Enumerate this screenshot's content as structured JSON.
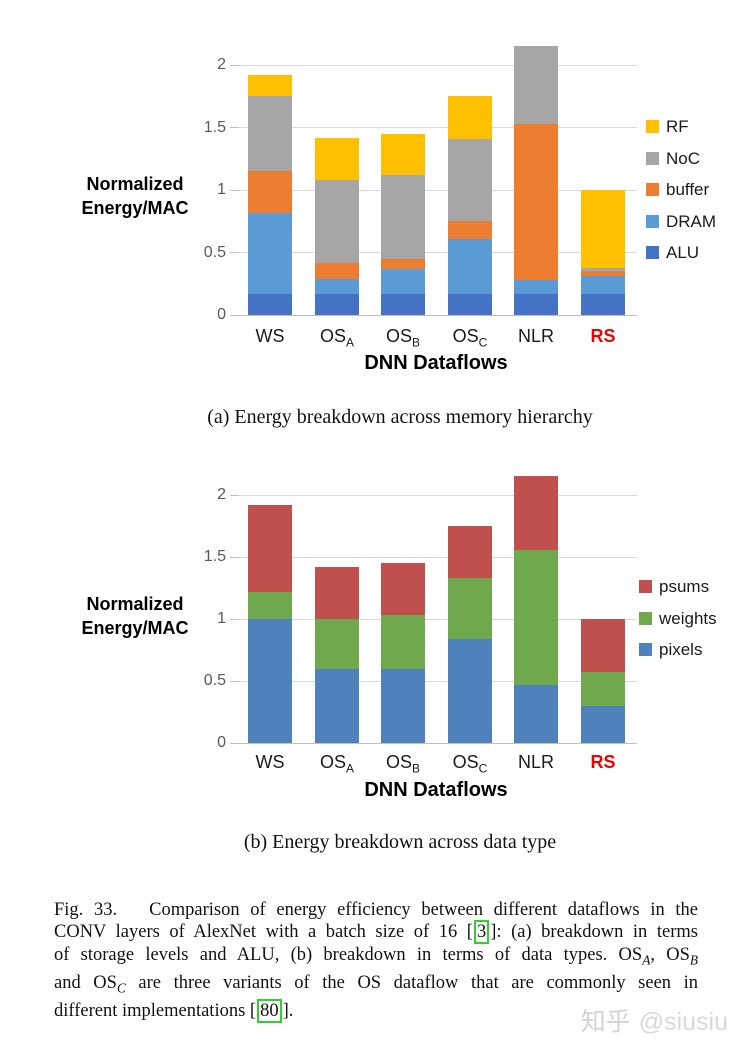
{
  "chart_data": [
    {
      "id": "a",
      "type": "bar",
      "stacked": true,
      "title": "",
      "xlabel": "DNN Dataflows",
      "ylabel": "Normalized Energy/MAC",
      "ylim": [
        0,
        2.2
      ],
      "yticks": [
        "0",
        "0.5",
        "1",
        "1.5",
        "2"
      ],
      "ytick_values": [
        0,
        0.5,
        1,
        1.5,
        2
      ],
      "grid": "horizontal",
      "legend_position": "right",
      "categories": [
        {
          "label": "WS",
          "sub": ""
        },
        {
          "label": "OS",
          "sub": "A"
        },
        {
          "label": "OS",
          "sub": "B"
        },
        {
          "label": "OS",
          "sub": "C"
        },
        {
          "label": "NLR",
          "sub": ""
        },
        {
          "label": "RS",
          "sub": "",
          "color": "#ee0000",
          "bold": true
        }
      ],
      "series": [
        {
          "name": "ALU",
          "color": "#4472c4",
          "values": [
            0.17,
            0.17,
            0.17,
            0.17,
            0.17,
            0.17
          ]
        },
        {
          "name": "DRAM",
          "color": "#5b9bd5",
          "values": [
            0.65,
            0.12,
            0.2,
            0.44,
            0.11,
            0.14
          ]
        },
        {
          "name": "buffer",
          "color": "#ed7d31",
          "values": [
            0.33,
            0.13,
            0.08,
            0.14,
            1.25,
            0.04
          ]
        },
        {
          "name": "NoC",
          "color": "#a6a6a6",
          "values": [
            0.6,
            0.66,
            0.67,
            0.66,
            0.62,
            0.03
          ]
        },
        {
          "name": "RF",
          "color": "#ffc000",
          "values": [
            0.17,
            0.34,
            0.33,
            0.34,
            0.0,
            0.62
          ]
        }
      ],
      "totals": [
        1.92,
        1.42,
        1.45,
        1.75,
        2.15,
        1.0
      ]
    },
    {
      "id": "b",
      "type": "bar",
      "stacked": true,
      "title": "",
      "xlabel": "DNN Dataflows",
      "ylabel": "Normalized Energy/MAC",
      "ylim": [
        0,
        2.2
      ],
      "yticks": [
        "0",
        "0.5",
        "1",
        "1.5",
        "2"
      ],
      "ytick_values": [
        0,
        0.5,
        1,
        1.5,
        2
      ],
      "grid": "horizontal",
      "legend_position": "right",
      "categories": [
        {
          "label": "WS",
          "sub": ""
        },
        {
          "label": "OS",
          "sub": "A"
        },
        {
          "label": "OS",
          "sub": "B"
        },
        {
          "label": "OS",
          "sub": "C"
        },
        {
          "label": "NLR",
          "sub": ""
        },
        {
          "label": "RS",
          "sub": "",
          "color": "#ee0000",
          "bold": true
        }
      ],
      "series": [
        {
          "name": "pixels",
          "color": "#4f81bd",
          "values": [
            1.0,
            0.6,
            0.6,
            0.84,
            0.47,
            0.3
          ]
        },
        {
          "name": "weights",
          "color": "#70a84e",
          "values": [
            0.22,
            0.4,
            0.43,
            0.49,
            1.09,
            0.27
          ]
        },
        {
          "name": "psums",
          "color": "#c0504d",
          "values": [
            0.7,
            0.42,
            0.42,
            0.42,
            0.59,
            0.43
          ]
        }
      ],
      "totals": [
        1.92,
        1.42,
        1.45,
        1.75,
        2.15,
        1.0
      ]
    }
  ],
  "subcaptions": {
    "a": "(a) Energy breakdown across memory hierarchy",
    "b": "(b) Energy breakdown across data type"
  },
  "figure_caption": {
    "lines": [
      [
        {
          "t": "Fig. 33.   Comparison of energy efficiency between different dataflows in the"
        }
      ],
      [
        {
          "t": "CONV layers of AlexNet with a batch size of 16 ["
        },
        {
          "cite": "3"
        },
        {
          "t": "]: (a) breakdown in terms"
        }
      ],
      [
        {
          "t": "of storage levels and ALU, (b) breakdown in terms of data types. OS"
        },
        {
          "sub": "A"
        },
        {
          "t": ", OS"
        },
        {
          "sub": "B"
        }
      ],
      [
        {
          "t": "and OS"
        },
        {
          "sub": "C"
        },
        {
          "t": " are three variants of the OS dataflow that are commonly seen in"
        }
      ],
      [
        {
          "t": "different implementations ["
        },
        {
          "cite": "80"
        },
        {
          "t": "]."
        }
      ]
    ]
  },
  "watermark": {
    "brand": "知乎",
    "handle": "@siusiu"
  }
}
